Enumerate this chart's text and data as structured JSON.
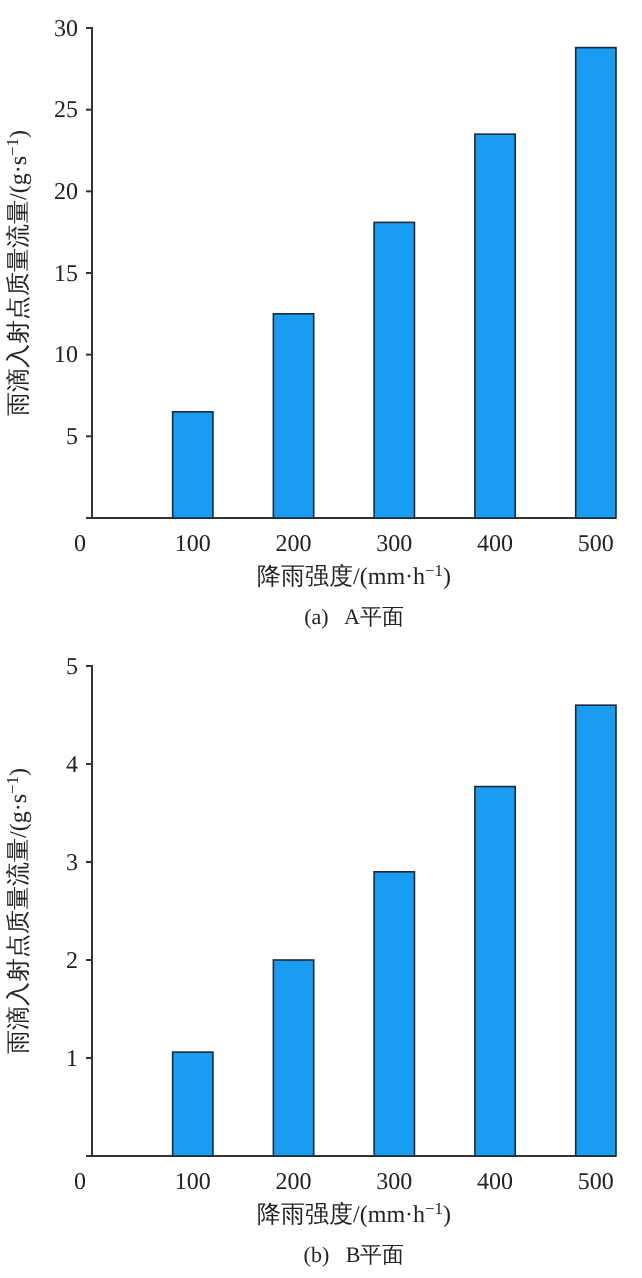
{
  "chart_data": [
    {
      "type": "bar",
      "x": [
        100,
        200,
        300,
        400,
        500
      ],
      "values": [
        6.5,
        12.5,
        18.1,
        23.5,
        28.8
      ],
      "color": "#1a9cf0",
      "xlim": [
        0,
        520
      ],
      "xticks": [
        0,
        100,
        200,
        300,
        400,
        500
      ],
      "ylim": [
        0,
        30
      ],
      "yticks": [
        5,
        10,
        15,
        20,
        25,
        30
      ],
      "xlabel": "降雨强度/(mm·h$^{−1}$)",
      "ylabel": "雨滴入射点质量流量/(g·s$^{−1}$)",
      "annotations": [
        "(a)   A平面"
      ]
    },
    {
      "type": "bar",
      "x": [
        100,
        200,
        300,
        400,
        500
      ],
      "values": [
        1.06,
        2.0,
        2.9,
        3.77,
        4.6
      ],
      "color": "#1a9cf0",
      "xlim": [
        0,
        520
      ],
      "xticks": [
        0,
        100,
        200,
        300,
        400,
        500
      ],
      "ylim": [
        0,
        5
      ],
      "yticks": [
        1,
        2,
        3,
        4,
        5
      ],
      "xlabel": "降雨强度/(mm·h$^{−1}$)",
      "ylabel": "雨滴入射点质量流量/(g·s$^{−1}$)",
      "annotations": [
        "(b)   B平面"
      ]
    }
  ]
}
